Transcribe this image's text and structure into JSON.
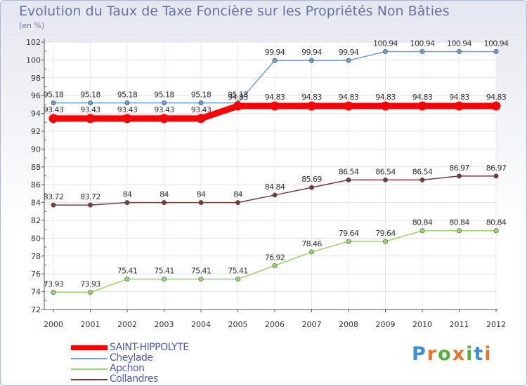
{
  "chart_data": {
    "type": "line",
    "title": "Evolution du Taux de Taxe Foncière sur les Propriétés Non Bâties",
    "ylabel": "(en %)",
    "xlabel": "",
    "ylim": [
      72,
      102
    ],
    "yticks": [
      "72",
      "74",
      "76",
      "78",
      "80",
      "82",
      "84",
      "86",
      "88",
      "90",
      "92",
      "94",
      "96",
      "98",
      "100",
      "102"
    ],
    "x": [
      "2000",
      "2001",
      "2002",
      "2003",
      "2004",
      "2005",
      "2006",
      "2007",
      "2008",
      "2009",
      "2010",
      "2011",
      "2012"
    ],
    "series": [
      {
        "name": "Cheylade",
        "color": "#6c9bcf",
        "values": [
          95.18,
          95.18,
          95.18,
          95.18,
          95.18,
          95.18,
          99.94,
          99.94,
          99.94,
          100.94,
          100.94,
          100.94,
          100.94
        ],
        "labels": [
          "95.18",
          "95.18",
          "95.18",
          "95.18",
          "95.18",
          "95.18",
          "99.94",
          "99.94",
          "99.94",
          "100.94",
          "100.94",
          "100.94",
          "100.94"
        ]
      },
      {
        "name": "Apchon",
        "color": "#9ad46c",
        "values": [
          73.93,
          73.93,
          75.41,
          75.41,
          75.41,
          75.41,
          76.92,
          78.46,
          79.64,
          79.64,
          80.84,
          80.84,
          80.84
        ],
        "labels": [
          "73.93",
          "73.93",
          "75.41",
          "75.41",
          "75.41",
          "75.41",
          "76.92",
          "78.46",
          "79.64",
          "79.64",
          "80.84",
          "80.84",
          "80.84"
        ]
      },
      {
        "name": "Collandres",
        "color": "#7a3a3a",
        "values": [
          83.72,
          83.72,
          84,
          84,
          84,
          84,
          84.84,
          85.69,
          86.54,
          86.54,
          86.54,
          86.97,
          86.97
        ],
        "labels": [
          "83.72",
          "83.72",
          "84",
          "84",
          "84",
          "84",
          "84.84",
          "85.69",
          "86.54",
          "86.54",
          "86.54",
          "86.97",
          "86.97"
        ]
      },
      {
        "name": "SAINT-HIPPOLYTE",
        "color": "#ff0000",
        "values": [
          93.43,
          93.43,
          93.43,
          93.43,
          93.43,
          94.83,
          94.83,
          94.83,
          94.83,
          94.83,
          94.83,
          94.83,
          94.83
        ],
        "labels": [
          "93.43",
          "93.43",
          "93.43",
          "93.43",
          "93.43",
          "94.83",
          "94.83",
          "94.83",
          "94.83",
          "94.83",
          "94.83",
          "94.83",
          "94.83"
        ]
      }
    ],
    "legend": [
      "SAINT-HIPPOLYTE",
      "Cheylade",
      "Apchon",
      "Collandres"
    ],
    "legend_position": "bottom-left",
    "grid": true
  },
  "logo": {
    "letters": [
      "P",
      "r",
      "o",
      "x",
      "i",
      "t",
      "i"
    ],
    "colors": [
      "#3a8fd8",
      "#e8742a",
      "#55b040",
      "#e8742a",
      "#55b040",
      "#3a8fd8",
      "#e8742a"
    ]
  }
}
